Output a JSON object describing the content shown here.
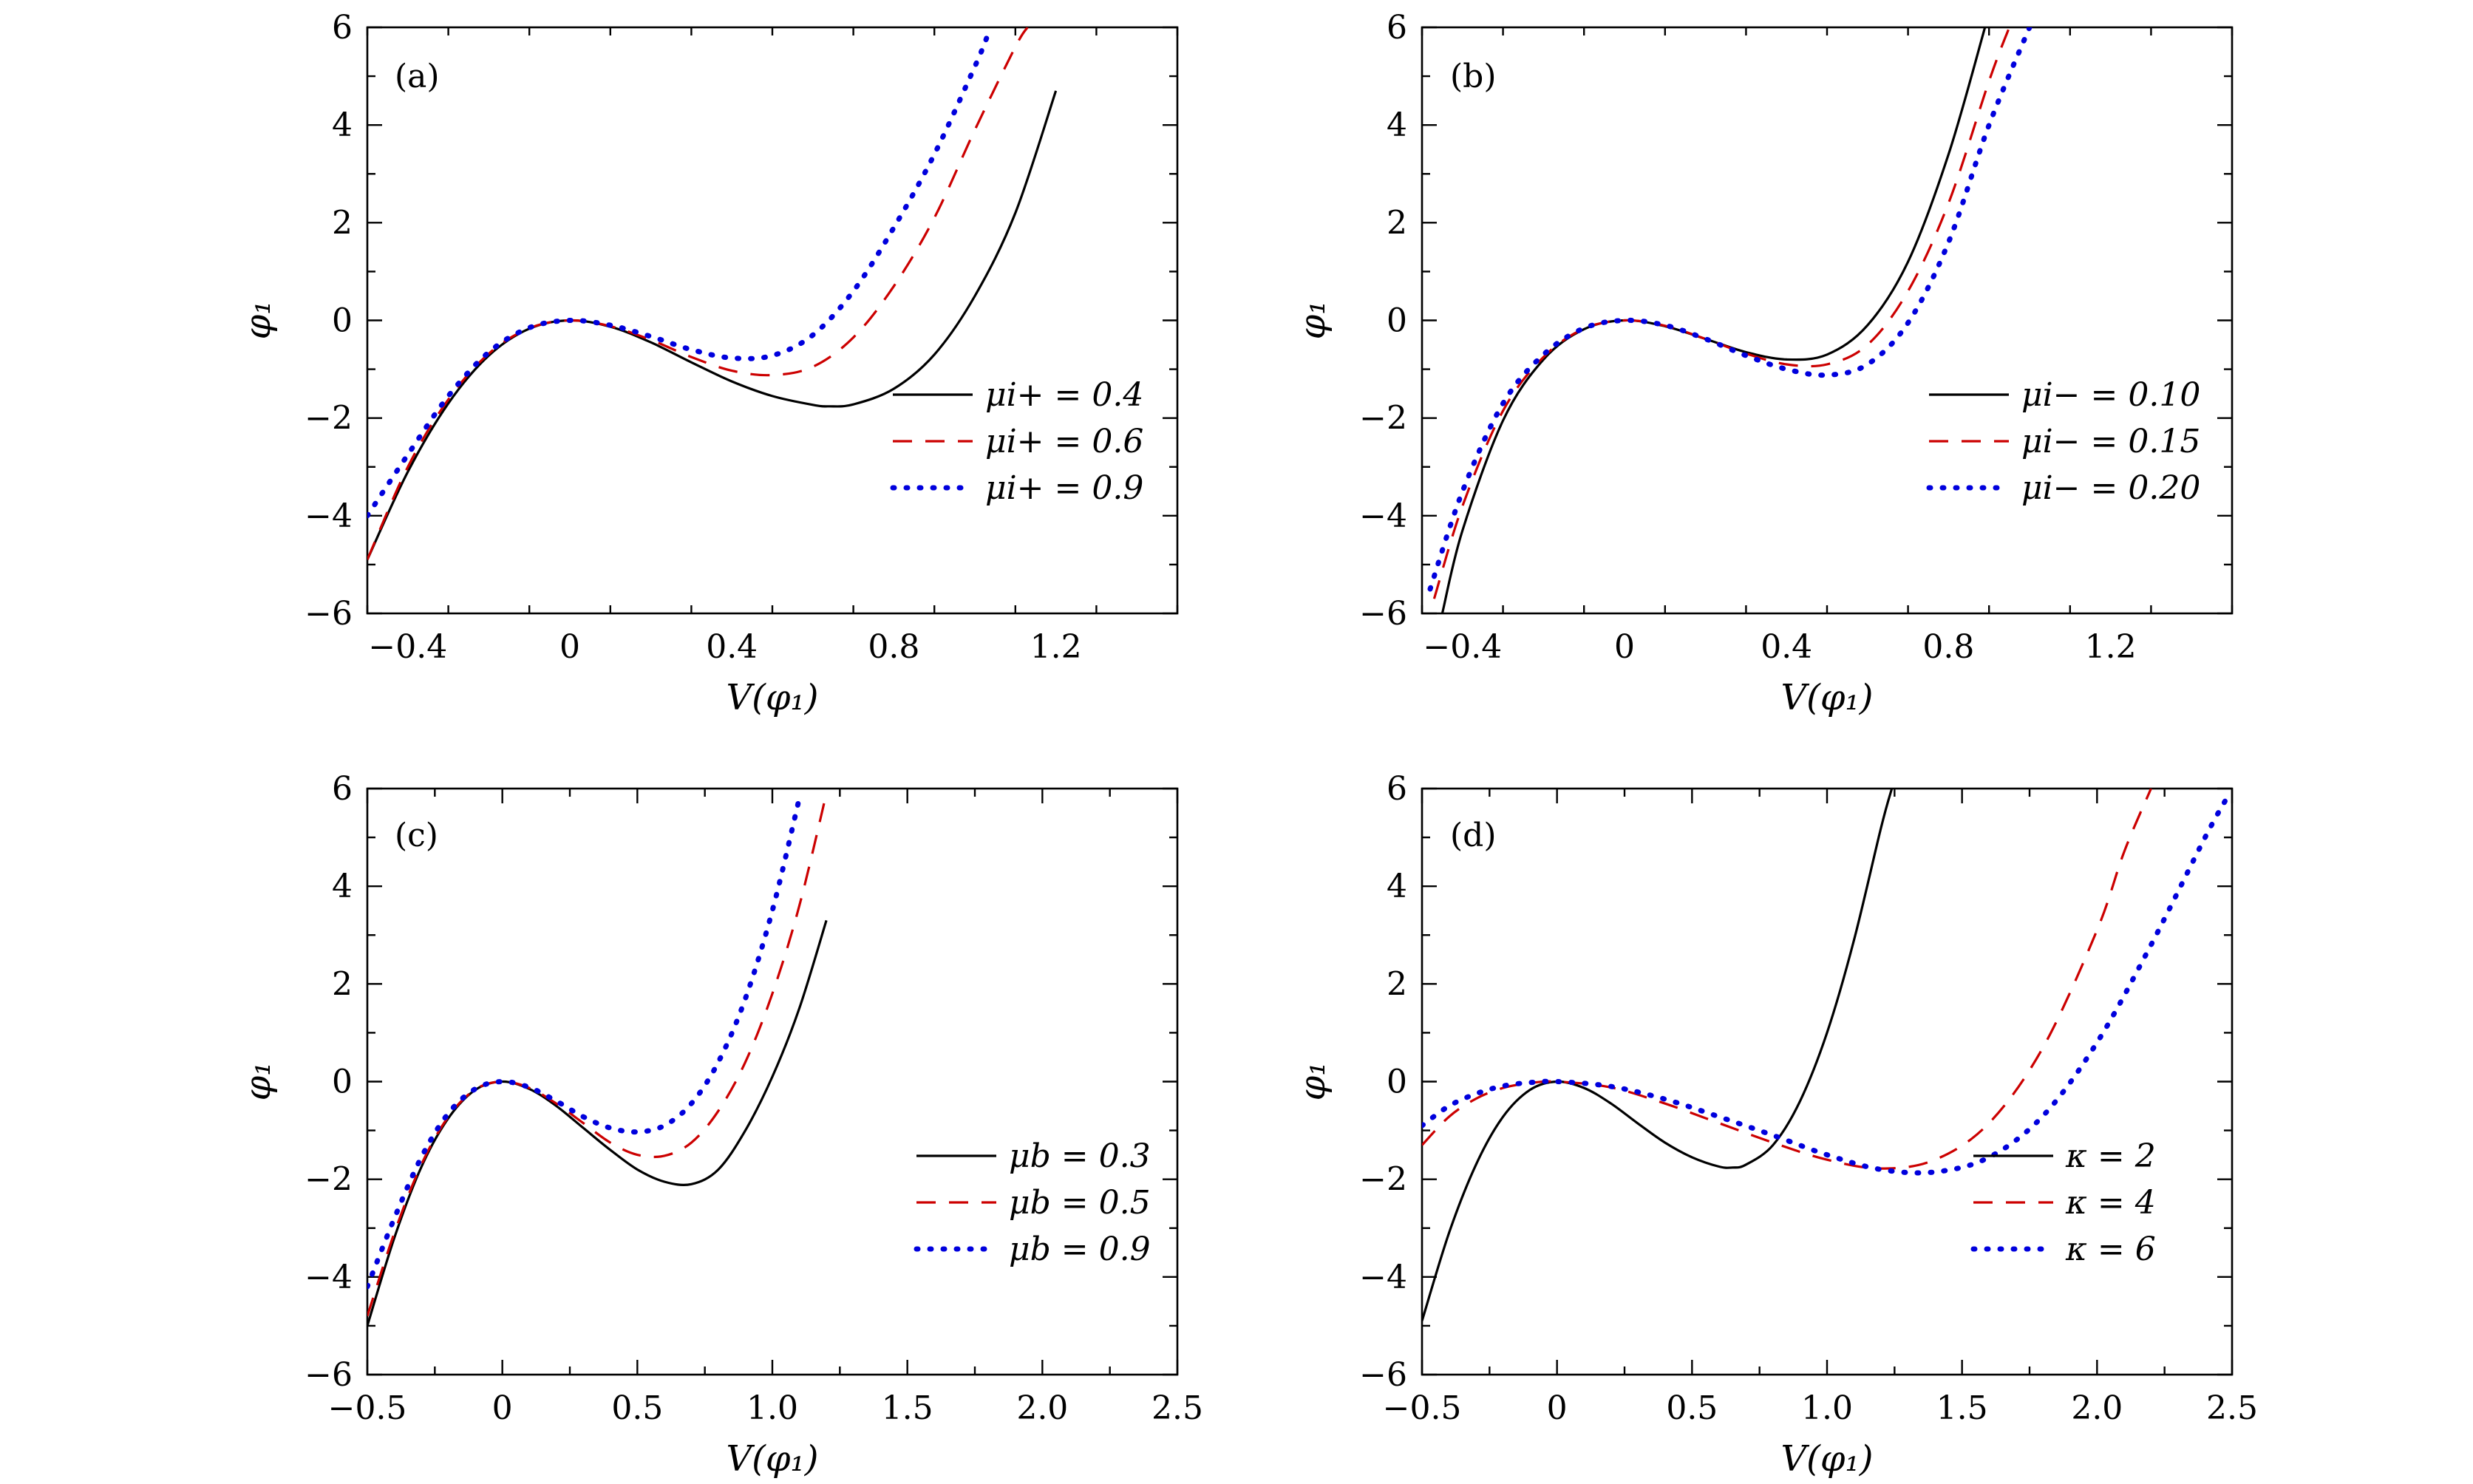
{
  "colors": {
    "solid": "#000000",
    "dashed": "#cc0000",
    "dotted": "#0000dd"
  },
  "chart_data": [
    {
      "type": "line",
      "panel_label": "(a)",
      "xlabel": "V(φ₁)",
      "ylabel": "φ₁",
      "xlim": [
        -0.5,
        1.5
      ],
      "ylim": [
        -6,
        6
      ],
      "xticks": [
        -0.4,
        0,
        0.4,
        0.8,
        1.2
      ],
      "xtick_labels": [
        "−0.4",
        "0",
        "0.4",
        "0.8",
        "1.2"
      ],
      "yticks": [
        -6,
        -4,
        -2,
        0,
        2,
        4,
        6
      ],
      "ytick_labels": [
        "−6",
        "−4",
        "−2",
        "0",
        "2",
        "4",
        "6"
      ],
      "legend_position": "bottom-right",
      "series": [
        {
          "name": "μi+ = 0.4",
          "style": "solid",
          "color": "#000000",
          "x": [
            -0.5,
            -0.4,
            -0.3,
            -0.2,
            -0.1,
            0,
            0.1,
            0.2,
            0.3,
            0.4,
            0.5,
            0.6,
            0.64,
            0.7,
            0.8,
            0.9,
            1.0,
            1.1,
            1.2
          ],
          "y": [
            -4.9,
            -3.1,
            -1.7,
            -0.72,
            -0.17,
            0,
            -0.13,
            -0.45,
            -0.86,
            -1.25,
            -1.55,
            -1.73,
            -1.76,
            -1.72,
            -1.4,
            -0.7,
            0.5,
            2.2,
            4.7
          ]
        },
        {
          "name": "μi+ = 0.6",
          "style": "dashed",
          "color": "#cc0000",
          "x": [
            -0.5,
            -0.4,
            -0.3,
            -0.2,
            -0.1,
            0,
            0.1,
            0.2,
            0.3,
            0.4,
            0.5,
            0.6,
            0.7,
            0.8,
            0.9,
            1.0,
            1.1,
            1.13
          ],
          "y": [
            -4.9,
            -3.0,
            -1.62,
            -0.68,
            -0.16,
            0,
            -0.12,
            -0.4,
            -0.75,
            -1.03,
            -1.12,
            -0.95,
            -0.35,
            0.7,
            2.1,
            3.9,
            5.6,
            6.0
          ]
        },
        {
          "name": "μi+ = 0.9",
          "style": "dotted",
          "color": "#0000dd",
          "x": [
            -0.5,
            -0.4,
            -0.3,
            -0.2,
            -0.1,
            0,
            0.1,
            0.2,
            0.3,
            0.4,
            0.5,
            0.6,
            0.7,
            0.8,
            0.9,
            1.0,
            1.03
          ],
          "y": [
            -4.0,
            -2.75,
            -1.55,
            -0.65,
            -0.15,
            0,
            -0.1,
            -0.33,
            -0.6,
            -0.77,
            -0.72,
            -0.3,
            0.6,
            1.9,
            3.4,
            5.2,
            5.8
          ]
        }
      ]
    },
    {
      "type": "line",
      "panel_label": "(b)",
      "xlabel": "V(φ₁)",
      "ylabel": "φ₁",
      "xlim": [
        -0.5,
        1.5
      ],
      "ylim": [
        -6,
        6
      ],
      "xticks": [
        -0.4,
        0,
        0.4,
        0.8,
        1.2
      ],
      "xtick_labels": [
        "−0.4",
        "0",
        "0.4",
        "0.8",
        "1.2"
      ],
      "yticks": [
        -6,
        -4,
        -2,
        0,
        2,
        4,
        6
      ],
      "ytick_labels": [
        "−6",
        "−4",
        "−2",
        "0",
        "2",
        "4",
        "6"
      ],
      "legend_position": "bottom-right",
      "series": [
        {
          "name": "μi− = 0.10",
          "style": "solid",
          "color": "#000000",
          "x": [
            -0.45,
            -0.4,
            -0.3,
            -0.2,
            -0.1,
            0,
            0.1,
            0.2,
            0.3,
            0.4,
            0.5,
            0.6,
            0.7,
            0.8,
            0.89
          ],
          "y": [
            -6.0,
            -4.3,
            -2.05,
            -0.8,
            -0.18,
            0,
            -0.12,
            -0.38,
            -0.65,
            -0.8,
            -0.7,
            -0.1,
            1.2,
            3.4,
            6.0
          ]
        },
        {
          "name": "μi− = 0.15",
          "style": "dashed",
          "color": "#cc0000",
          "x": [
            -0.47,
            -0.4,
            -0.3,
            -0.2,
            -0.1,
            0,
            0.1,
            0.2,
            0.3,
            0.4,
            0.5,
            0.6,
            0.7,
            0.8,
            0.9,
            0.95
          ],
          "y": [
            -5.7,
            -3.8,
            -1.85,
            -0.75,
            -0.17,
            0,
            -0.11,
            -0.38,
            -0.68,
            -0.9,
            -0.9,
            -0.5,
            0.6,
            2.4,
            4.9,
            6.0
          ]
        },
        {
          "name": "μi− = 0.20",
          "style": "dotted",
          "color": "#0000dd",
          "x": [
            -0.48,
            -0.4,
            -0.3,
            -0.2,
            -0.1,
            0,
            0.1,
            0.2,
            0.3,
            0.4,
            0.5,
            0.6,
            0.7,
            0.8,
            0.9,
            1.0
          ],
          "y": [
            -5.5,
            -3.5,
            -1.7,
            -0.7,
            -0.16,
            0,
            -0.1,
            -0.38,
            -0.72,
            -1.0,
            -1.12,
            -0.9,
            -0.05,
            1.6,
            4.0,
            6.0
          ]
        }
      ]
    },
    {
      "type": "line",
      "panel_label": "(c)",
      "xlabel": "V(φ₁)",
      "ylabel": "φ₁",
      "xlim": [
        -0.5,
        2.5
      ],
      "ylim": [
        -6,
        6
      ],
      "xticks": [
        -0.5,
        0,
        0.5,
        1.0,
        1.5,
        2.0,
        2.5
      ],
      "xtick_labels": [
        "−0.5",
        "0",
        "0.5",
        "1.0",
        "1.5",
        "2.0",
        "2.5"
      ],
      "yticks": [
        -6,
        -4,
        -2,
        0,
        2,
        4,
        6
      ],
      "ytick_labels": [
        "−6",
        "−4",
        "−2",
        "0",
        "2",
        "4",
        "6"
      ],
      "legend_position": "bottom-right",
      "series": [
        {
          "name": "μb = 0.3",
          "style": "solid",
          "color": "#000000",
          "x": [
            -0.5,
            -0.4,
            -0.3,
            -0.2,
            -0.1,
            0,
            0.1,
            0.2,
            0.3,
            0.4,
            0.5,
            0.6,
            0.7,
            0.8,
            0.9,
            1.0,
            1.1,
            1.2
          ],
          "y": [
            -5.0,
            -3.2,
            -1.75,
            -0.75,
            -0.17,
            0,
            -0.15,
            -0.5,
            -0.95,
            -1.4,
            -1.8,
            -2.05,
            -2.1,
            -1.8,
            -1.0,
            0.1,
            1.5,
            3.3
          ]
        },
        {
          "name": "μb = 0.5",
          "style": "dashed",
          "color": "#cc0000",
          "x": [
            -0.5,
            -0.4,
            -0.3,
            -0.2,
            -0.1,
            0,
            0.1,
            0.2,
            0.3,
            0.4,
            0.5,
            0.6,
            0.7,
            0.8,
            0.9,
            1.0,
            1.1,
            1.2
          ],
          "y": [
            -4.8,
            -3.1,
            -1.7,
            -0.72,
            -0.16,
            0,
            -0.13,
            -0.45,
            -0.85,
            -1.25,
            -1.5,
            -1.52,
            -1.25,
            -0.6,
            0.4,
            1.8,
            3.6,
            5.9
          ]
        },
        {
          "name": "μb = 0.9",
          "style": "dotted",
          "color": "#0000dd",
          "x": [
            -0.5,
            -0.4,
            -0.3,
            -0.2,
            -0.1,
            0,
            0.1,
            0.2,
            0.3,
            0.4,
            0.5,
            0.6,
            0.7,
            0.8,
            0.9,
            1.0,
            1.1
          ],
          "y": [
            -4.2,
            -2.8,
            -1.55,
            -0.65,
            -0.15,
            0,
            -0.12,
            -0.4,
            -0.72,
            -0.95,
            -1.03,
            -0.9,
            -0.45,
            0.4,
            1.7,
            3.5,
            5.8
          ]
        }
      ]
    },
    {
      "type": "line",
      "panel_label": "(d)",
      "xlabel": "V(φ₁)",
      "ylabel": "φ₁",
      "xlim": [
        -0.5,
        2.5
      ],
      "ylim": [
        -6,
        6
      ],
      "xticks": [
        -0.5,
        0,
        0.5,
        1.0,
        1.5,
        2.0,
        2.5
      ],
      "xtick_labels": [
        "−0.5",
        "0",
        "0.5",
        "1.0",
        "1.5",
        "2.0",
        "2.5"
      ],
      "yticks": [
        -6,
        -4,
        -2,
        0,
        2,
        4,
        6
      ],
      "ytick_labels": [
        "−6",
        "−4",
        "−2",
        "0",
        "2",
        "4",
        "6"
      ],
      "legend_position": "bottom-right",
      "series": [
        {
          "name": "κ = 2",
          "style": "solid",
          "color": "#000000",
          "x": [
            -0.5,
            -0.4,
            -0.3,
            -0.2,
            -0.1,
            0,
            0.1,
            0.2,
            0.3,
            0.4,
            0.5,
            0.6,
            0.65,
            0.7,
            0.8,
            0.9,
            1.0,
            1.1,
            1.2,
            1.24
          ],
          "y": [
            -4.9,
            -3.1,
            -1.7,
            -0.72,
            -0.17,
            0,
            -0.13,
            -0.45,
            -0.86,
            -1.25,
            -1.55,
            -1.74,
            -1.76,
            -1.7,
            -1.3,
            -0.4,
            1.0,
            2.9,
            5.2,
            6.0
          ]
        },
        {
          "name": "κ = 4",
          "style": "dashed",
          "color": "#cc0000",
          "x": [
            -0.5,
            -0.4,
            -0.3,
            -0.2,
            -0.1,
            0,
            0.2,
            0.4,
            0.6,
            0.8,
            1.0,
            1.2,
            1.4,
            1.6,
            1.8,
            2.0,
            2.1,
            2.2
          ],
          "y": [
            -1.3,
            -0.72,
            -0.35,
            -0.13,
            -0.03,
            0,
            -0.12,
            -0.45,
            -0.85,
            -1.25,
            -1.6,
            -1.78,
            -1.6,
            -0.85,
            0.7,
            3.1,
            4.7,
            6.0
          ]
        },
        {
          "name": "κ = 6",
          "style": "dotted",
          "color": "#0000dd",
          "x": [
            -0.5,
            -0.4,
            -0.3,
            -0.2,
            -0.1,
            0,
            0.2,
            0.4,
            0.6,
            0.8,
            1.0,
            1.2,
            1.4,
            1.6,
            1.8,
            2.0,
            2.2,
            2.4,
            2.48
          ],
          "y": [
            -0.9,
            -0.5,
            -0.25,
            -0.09,
            -0.02,
            0,
            -0.1,
            -0.36,
            -0.72,
            -1.1,
            -1.5,
            -1.8,
            -1.85,
            -1.55,
            -0.7,
            0.8,
            2.8,
            5.0,
            5.8
          ]
        }
      ]
    }
  ]
}
